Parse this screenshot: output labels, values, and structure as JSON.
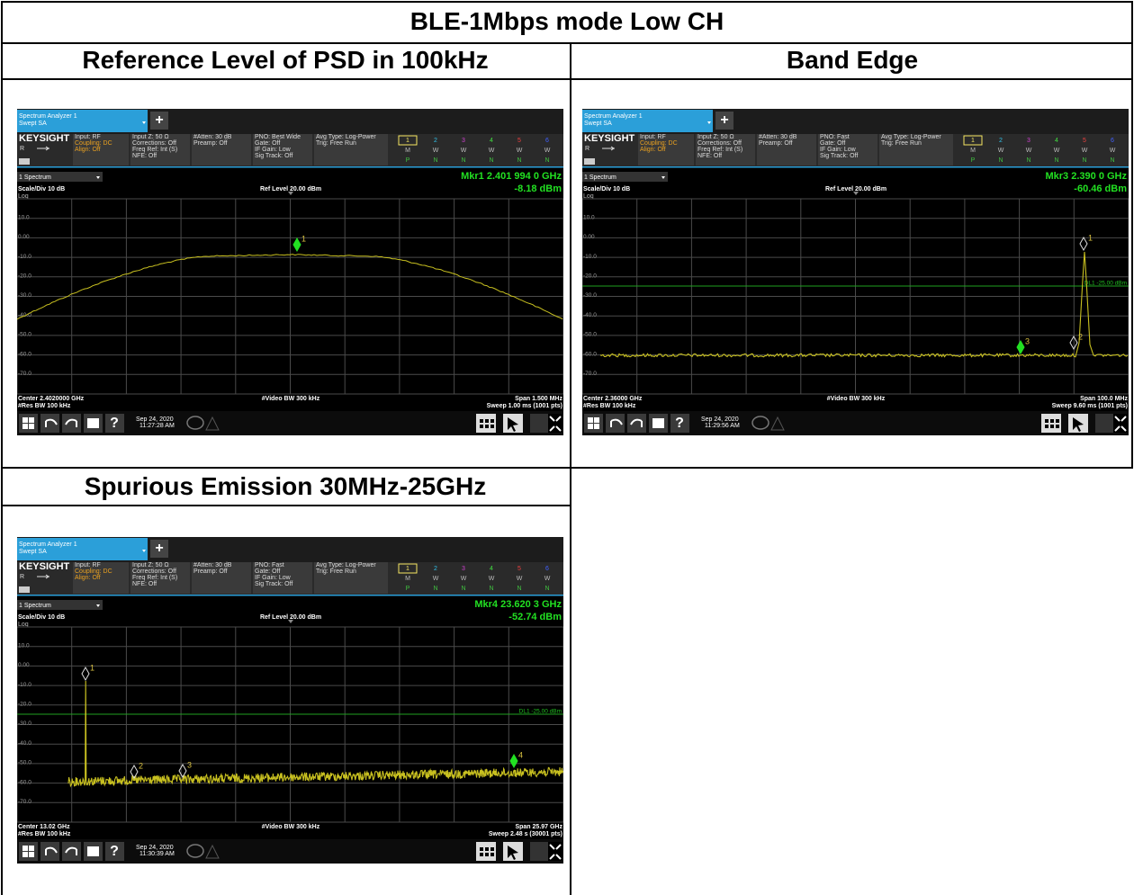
{
  "title": "BLE-1Mbps mode Low CH",
  "cells": [
    {
      "heading": "Reference Level of PSD in 100kHz",
      "screen": {
        "tab": [
          "Spectrum Analyzer 1",
          "Swept SA"
        ],
        "plus": "+",
        "brand": "KEYSIGHT",
        "ref_flag": "R",
        "input": [
          "Input: RF",
          "Coupling: DC",
          "Align: Off"
        ],
        "col2": [
          "Input Z: 50 Ω",
          "Corrections: Off",
          "Freq Ref: Int (S)",
          "NFE: Off"
        ],
        "col3": [
          "#Atten: 30 dB",
          "Preamp: Off"
        ],
        "col4": [
          "PNO: Best Wide",
          "Gate: Off",
          "IF Gain: Low",
          "Sig Track: Off"
        ],
        "col5": [
          "Avg Type: Log-Power",
          "Trig: Free Run"
        ],
        "trace_numbers": [
          "1",
          "2",
          "3",
          "4",
          "5",
          "6"
        ],
        "trace_types": [
          "M",
          "W",
          "W",
          "W",
          "W",
          "W"
        ],
        "trace_detectors": [
          "P",
          "N",
          "N",
          "N",
          "N",
          "N"
        ],
        "window": "1 Spectrum",
        "marker": [
          "Mkr1  2.401 994 0 GHz",
          "-8.18 dBm"
        ],
        "scale": "Scale/Div 10 dB",
        "ref": "Ref Level 20.00 dBm",
        "log": "Log",
        "ylabels": [
          "10.0",
          "0.00",
          "-10.0",
          "-20.0",
          "-30.0",
          "-40.0",
          "-50.0",
          "-60.0",
          "-70.0"
        ],
        "marker_labels": [
          "1"
        ],
        "footer_left": [
          "Center 2.4020000 GHz",
          "#Res BW 100 kHz"
        ],
        "footer_center": "#Video BW 300 kHz",
        "footer_right": [
          "Span 1.500 MHz",
          "Sweep 1.00 ms (1001 pts)"
        ],
        "clock": [
          "Sep 24, 2020",
          "11:27:28 AM"
        ]
      }
    },
    {
      "heading": "Band Edge",
      "screen": {
        "tab": [
          "Spectrum Analyzer 1",
          "Swept SA"
        ],
        "plus": "+",
        "brand": "KEYSIGHT",
        "ref_flag": "R",
        "input": [
          "Input: RF",
          "Coupling: DC",
          "Align: Off"
        ],
        "col2": [
          "Input Z: 50 Ω",
          "Corrections: Off",
          "Freq Ref: Int (S)",
          "NFE: Off"
        ],
        "col3": [
          "#Atten: 30 dB",
          "Preamp: Off"
        ],
        "col4": [
          "PNO: Fast",
          "Gate: Off",
          "IF Gain: Low",
          "Sig Track: Off"
        ],
        "col5": [
          "Avg Type: Log-Power",
          "Trig: Free Run"
        ],
        "trace_numbers": [
          "1",
          "2",
          "3",
          "4",
          "5",
          "6"
        ],
        "trace_types": [
          "M",
          "W",
          "W",
          "W",
          "W",
          "W"
        ],
        "trace_detectors": [
          "P",
          "N",
          "N",
          "N",
          "N",
          "N"
        ],
        "window": "1 Spectrum",
        "marker": [
          "Mkr3  2.390 0 GHz",
          "-60.46 dBm"
        ],
        "scale": "Scale/Div 10 dB",
        "ref": "Ref Level 20.00 dBm",
        "log": "Log",
        "ylabels": [
          "10.0",
          "0.00",
          "-10.0",
          "-20.0",
          "-30.0",
          "-40.0",
          "-50.0",
          "-60.0",
          "-70.0"
        ],
        "display_line": "DL1 -25.00 dBm",
        "marker_labels": [
          "1",
          "2",
          "3"
        ],
        "footer_left": [
          "Center 2.36000 GHz",
          "#Res BW 100 kHz"
        ],
        "footer_center": "#Video BW 300 kHz",
        "footer_right": [
          "Span 100.0 MHz",
          "Sweep 9.60 ms (1001 pts)"
        ],
        "clock": [
          "Sep 24, 2020",
          "11:29:56 AM"
        ]
      }
    },
    {
      "heading": "Spurious Emission 30MHz-25GHz",
      "screen": {
        "tab": [
          "Spectrum Analyzer 1",
          "Swept SA"
        ],
        "plus": "+",
        "brand": "KEYSIGHT",
        "ref_flag": "R",
        "input": [
          "Input: RF",
          "Coupling: DC",
          "Align: Off"
        ],
        "col2": [
          "Input Z: 50 Ω",
          "Corrections: Off",
          "Freq Ref: Int (S)",
          "NFE: Off"
        ],
        "col3": [
          "#Atten: 30 dB",
          "Preamp: Off"
        ],
        "col4": [
          "PNO: Fast",
          "Gate: Off",
          "IF Gain: Low",
          "Sig Track: Off"
        ],
        "col5": [
          "Avg Type: Log-Power",
          "Trig: Free Run"
        ],
        "trace_numbers": [
          "1",
          "2",
          "3",
          "4",
          "5",
          "6"
        ],
        "trace_types": [
          "M",
          "W",
          "W",
          "W",
          "W",
          "W"
        ],
        "trace_detectors": [
          "P",
          "N",
          "N",
          "N",
          "N",
          "N"
        ],
        "window": "1 Spectrum",
        "marker": [
          "Mkr4  23.620 3 GHz",
          "-52.74 dBm"
        ],
        "scale": "Scale/Div 10 dB",
        "ref": "Ref Level 20.00 dBm",
        "log": "Log",
        "ylabels": [
          "10.0",
          "0.00",
          "-10.0",
          "-20.0",
          "-30.0",
          "-40.0",
          "-50.0",
          "-60.0",
          "-70.0"
        ],
        "display_line": "DL1 -25.00 dBm",
        "marker_labels": [
          "1",
          "2",
          "3",
          "4"
        ],
        "footer_left": [
          "Center 13.02 GHz",
          "#Res BW 100 kHz"
        ],
        "footer_center": "#Video BW 300 kHz",
        "footer_right": [
          "Span 25.97 GHz",
          "Sweep 2.48 s (30001 pts)"
        ],
        "clock": [
          "Sep 24, 2020",
          "11:30:39 AM"
        ]
      }
    }
  ]
}
